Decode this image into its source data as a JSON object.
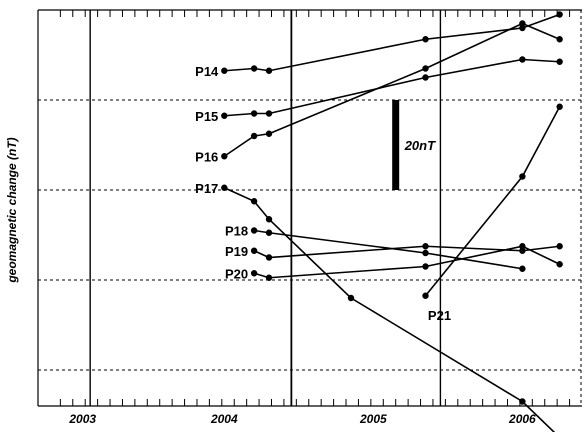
{
  "chart_data": {
    "type": "line",
    "ylabel": "geomagnetic change (nT)",
    "xlabel": "",
    "xlim": [
      2002.85,
      2006.5
    ],
    "ylim": [
      -88,
      0
    ],
    "x_tick_labels": [
      {
        "x": 2003.15,
        "label": "2003"
      },
      {
        "x": 2004.1,
        "label": "2004"
      },
      {
        "x": 2005.1,
        "label": "2005"
      },
      {
        "x": 2006.1,
        "label": "2006"
      }
    ],
    "solid_vlines": [
      2003.2,
      2004.55,
      2005.55
    ],
    "dashed_hlines": [
      -20,
      -40,
      -60,
      -80
    ],
    "grid_edges": {
      "top": true,
      "right": true
    },
    "scale_bar": {
      "label": "20nT",
      "x": 2005.25,
      "y_top": -20,
      "y_bottom": -40
    },
    "series": [
      {
        "name": "P14",
        "x": [
          2004.1,
          2004.3,
          2004.4,
          2005.45,
          2006.1,
          2006.35
        ],
        "y": [
          -13.5,
          -13.0,
          -13.5,
          -6.5,
          -4.0,
          -1.0
        ]
      },
      {
        "name": "P15",
        "x": [
          2004.1,
          2004.3,
          2004.4,
          2005.45,
          2006.1,
          2006.35
        ],
        "y": [
          -23.5,
          -23.0,
          -23.0,
          -15.0,
          -11.0,
          -11.5
        ]
      },
      {
        "name": "P16",
        "x": [
          2004.1,
          2004.3,
          2004.4,
          2005.45,
          2006.1,
          2006.35
        ],
        "y": [
          -32.5,
          -28.0,
          -27.5,
          -13.0,
          -3.0,
          -6.5
        ]
      },
      {
        "name": "P17",
        "x": [
          2004.1,
          2004.3,
          2004.4,
          2004.95,
          2006.1,
          2006.35
        ],
        "y": [
          -39.5,
          -42.5,
          -46.5,
          -64.0,
          -87.0,
          -95.0
        ]
      },
      {
        "name": "P18",
        "x": [
          2004.3,
          2004.4,
          2005.45,
          2006.1
        ],
        "y": [
          -49.0,
          -49.5,
          -54.0,
          -57.5
        ]
      },
      {
        "name": "P19",
        "x": [
          2004.3,
          2004.4,
          2005.45,
          2006.1,
          2006.35
        ],
        "y": [
          -53.5,
          -55.0,
          -52.5,
          -53.5,
          -52.5
        ]
      },
      {
        "name": "P20",
        "x": [
          2004.3,
          2004.4,
          2005.45,
          2006.1,
          2006.35
        ],
        "y": [
          -58.5,
          -59.5,
          -57.0,
          -52.5,
          -56.5
        ]
      },
      {
        "name": "P21",
        "x": [
          2005.45,
          2006.1,
          2006.35
        ],
        "y": [
          -63.5,
          -37.0,
          -21.5
        ]
      }
    ]
  }
}
